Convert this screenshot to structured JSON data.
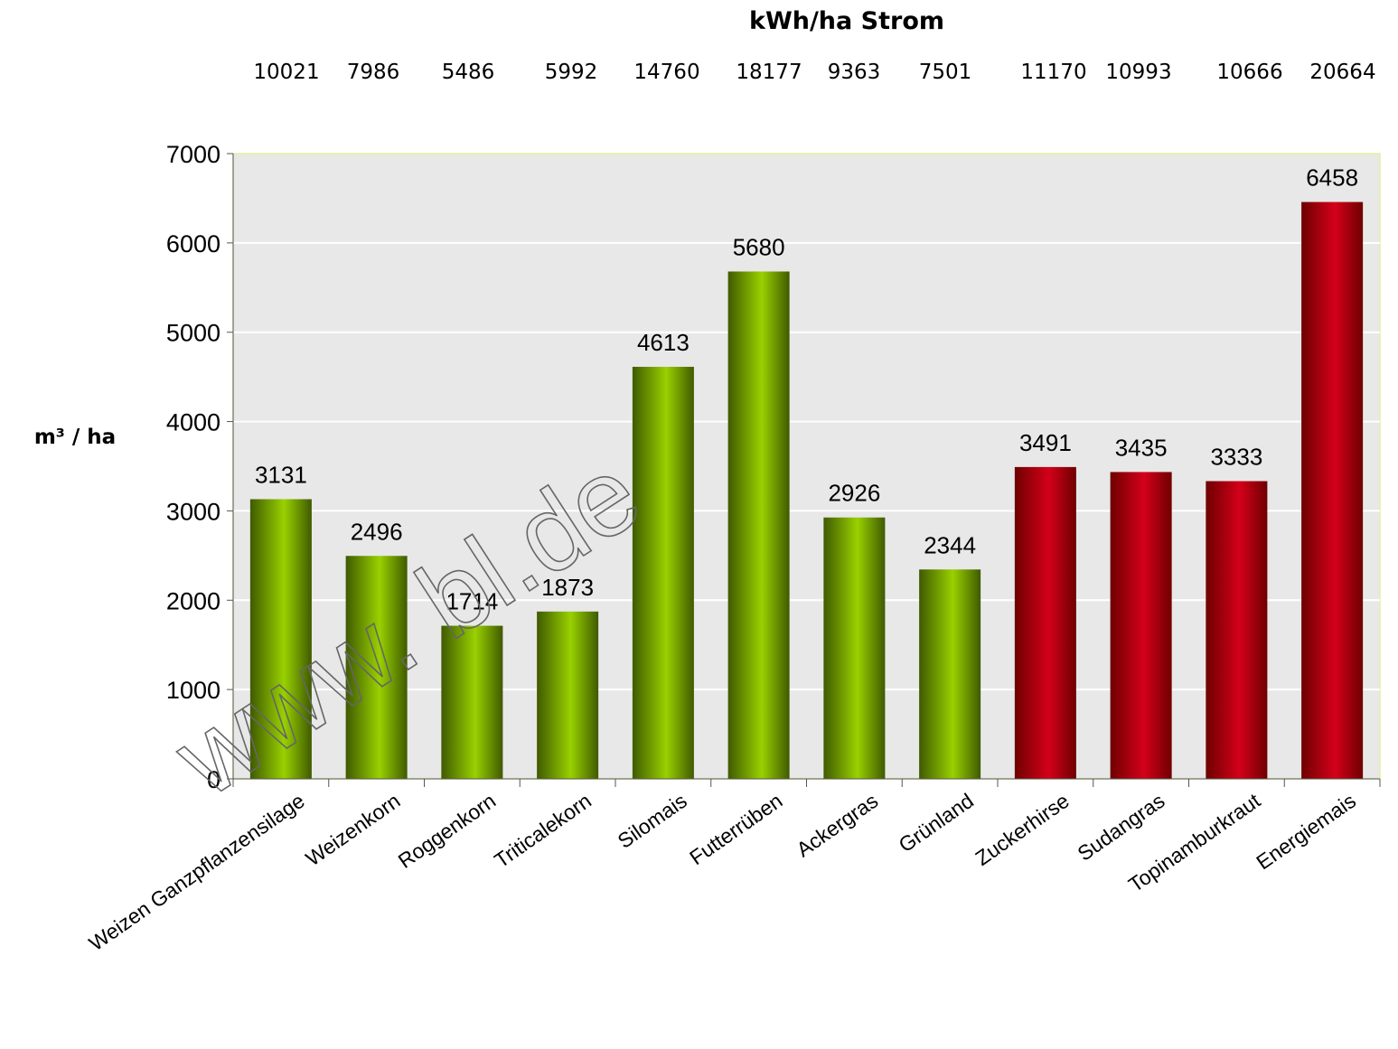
{
  "chart_data": {
    "type": "bar",
    "title": "kWh/ha Strom",
    "ylabel": "m³ / ha",
    "xlabel": "",
    "ylim": [
      0,
      7000
    ],
    "yticks": [
      0,
      1000,
      2000,
      3000,
      4000,
      5000,
      6000,
      7000
    ],
    "grid": true,
    "categories": [
      "Weizen Ganzpflanzensilage",
      "Weizenkorn",
      "Roggenkorn",
      "Triticalekorn",
      "Silomais",
      "Futterrüben",
      "Ackergras",
      "Grünland",
      "Zuckerhirse",
      "Sudangras",
      "Topinamburkraut",
      "Energiemais"
    ],
    "values": [
      3131,
      2496,
      1714,
      1873,
      4613,
      5680,
      2926,
      2344,
      3491,
      3435,
      3333,
      6458
    ],
    "strom_kwh_per_ha": [
      10021,
      7986,
      5486,
      5992,
      14760,
      18177,
      9363,
      7501,
      11170,
      10993,
      10666,
      20664
    ],
    "bar_groups": [
      "green",
      "green",
      "green",
      "green",
      "green",
      "green",
      "green",
      "green",
      "red",
      "red",
      "red",
      "red"
    ],
    "colors": {
      "green_light": "#99d100",
      "green_dark": "#3f5a00",
      "red_light": "#d4001a",
      "red_dark": "#6e0000",
      "plot_bg": "#e8e8e8",
      "plot_border": "#e3f0a0",
      "gridline": "#ffffff"
    },
    "watermark": "www.      bl.de"
  }
}
